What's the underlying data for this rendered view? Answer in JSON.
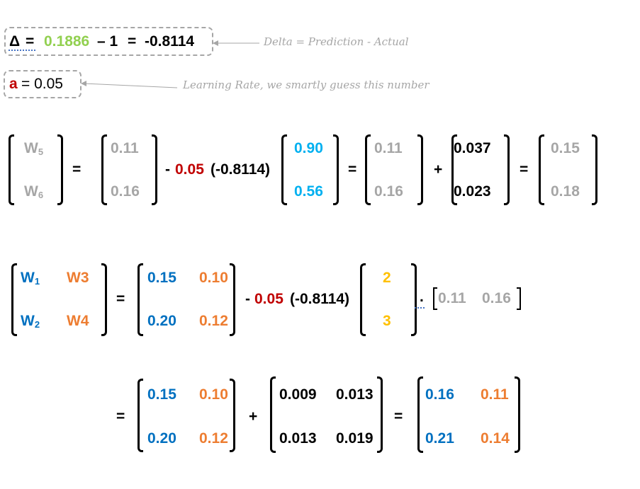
{
  "delta_line": {
    "symbol": "Δ",
    "eq1": "=",
    "prediction": "0.1886",
    "minus_actual": "– 1",
    "eq2": "=",
    "result": "-0.8114"
  },
  "delta_note": "Delta = Prediction - Actual",
  "lr_line": {
    "symbol": "a",
    "rest": "= 0.05"
  },
  "lr_note": "Learning Rate, we smartly guess this number",
  "row1": {
    "lhs": [
      "W",
      "5",
      "W",
      "6"
    ],
    "eq1": "=",
    "m1": [
      "0.11",
      "0.16"
    ],
    "op_minus": "-",
    "lr": "0.05",
    "delta": "(-0.8114)",
    "m2": [
      "0.90",
      "0.56"
    ],
    "eq2": "=",
    "m3": [
      "0.11",
      "0.16"
    ],
    "plus": "+",
    "m4": [
      "0.037",
      "0.023"
    ],
    "eq3": "=",
    "m5": [
      "0.15",
      "0.18"
    ]
  },
  "row2": {
    "lhs": [
      "W",
      "1",
      "W3",
      "W",
      "2",
      "W4"
    ],
    "eq1": "=",
    "m1": [
      "0.15",
      "0.10",
      "0.20",
      "0.12"
    ],
    "op_minus": "-",
    "lr": "0.05",
    "delta": "(-0.8114)",
    "m2": [
      "2",
      "3"
    ],
    "dot": ".",
    "m3": [
      "0.11",
      "0.16"
    ]
  },
  "row3": {
    "eq1": "=",
    "m1": [
      "0.15",
      "0.10",
      "0.20",
      "0.12"
    ],
    "plus": "+",
    "m2": [
      "0.009",
      "0.013",
      "0.013",
      "0.019"
    ],
    "eq2": "=",
    "m3": [
      "0.16",
      "0.11",
      "0.21",
      "0.14"
    ]
  },
  "colors": {
    "gray": "#a6a6a6",
    "green": "#92d050",
    "red": "#c00000",
    "light_blue": "#00b0f0",
    "dark_blue": "#0070c0",
    "orange": "#ed7d31",
    "gold": "#ffc000"
  }
}
